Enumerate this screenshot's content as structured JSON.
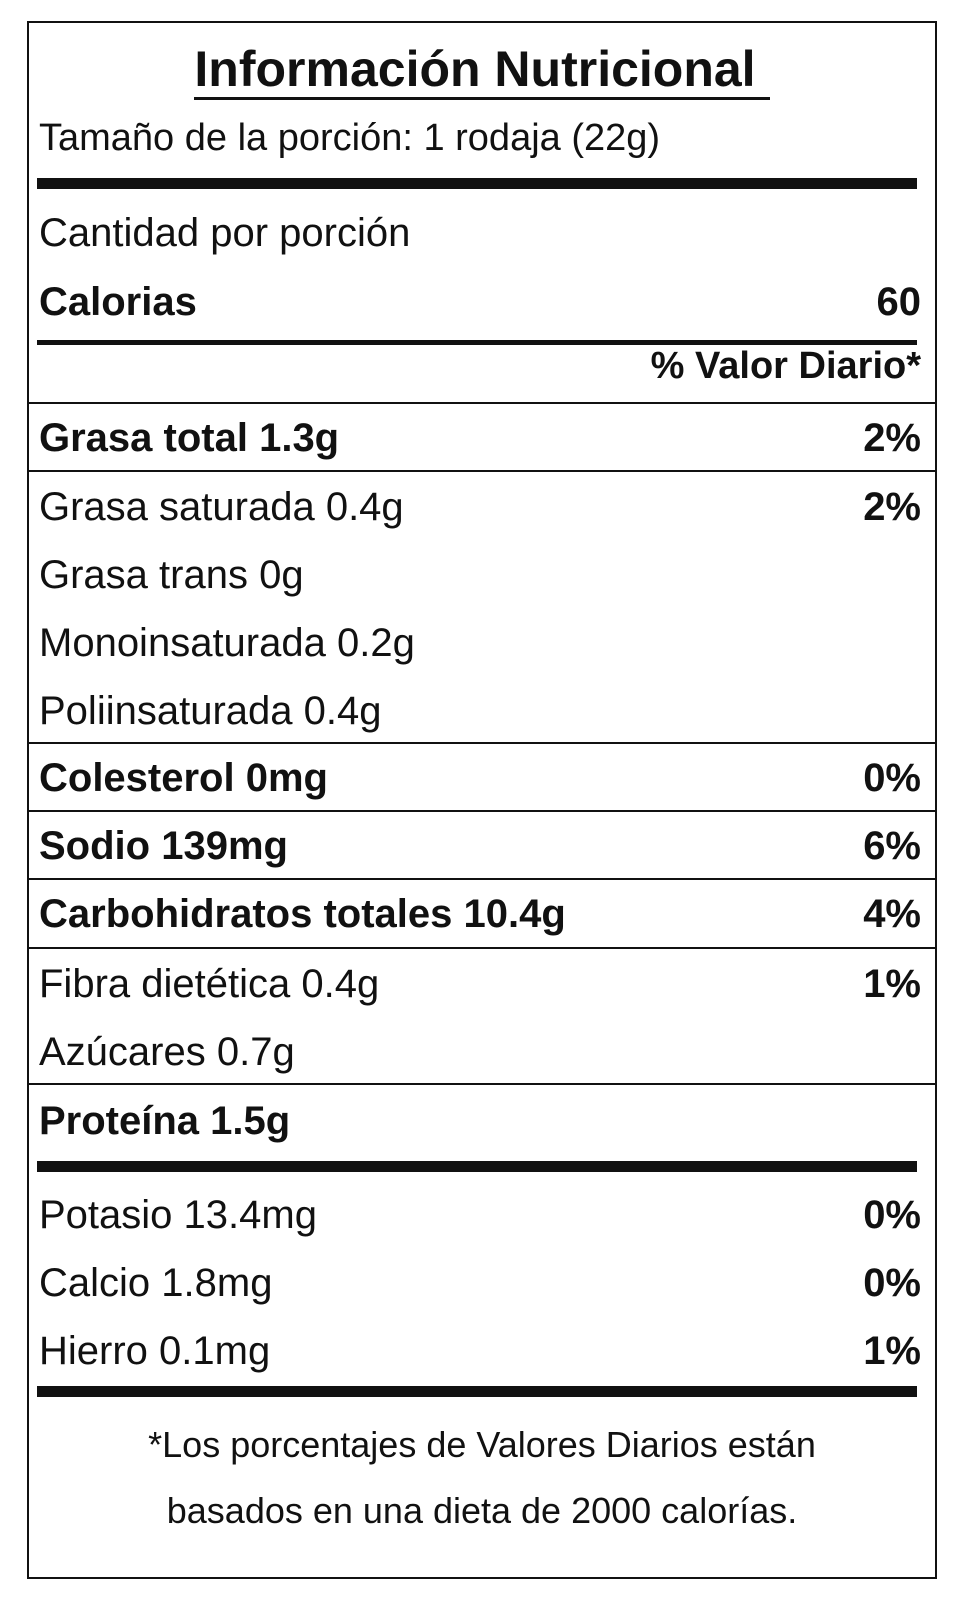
{
  "title": "Información Nutricional",
  "serving_size": "Tamaño de la porción: 1 rodaja (22g)",
  "amount_per_serving": "Cantidad por porción",
  "calories": {
    "label": "Calorias",
    "value": "60"
  },
  "dv_header": "% Valor Diario*",
  "nutrients": {
    "total_fat": {
      "label": "Grasa total 1.3g",
      "dv": "2%"
    },
    "saturated_fat": {
      "label": "Grasa saturada 0.4g",
      "dv": "2%"
    },
    "trans_fat": {
      "label": "Grasa trans 0g"
    },
    "monounsaturated": {
      "label": "Monoinsaturada 0.2g"
    },
    "polyunsaturated": {
      "label": "Poliinsaturada 0.4g"
    },
    "cholesterol": {
      "label": "Colesterol 0mg",
      "dv": "0%"
    },
    "sodium": {
      "label": "Sodio 139mg",
      "dv": "6%"
    },
    "total_carbs": {
      "label": "Carbohidratos totales 10.4g",
      "dv": "4%"
    },
    "fiber": {
      "label": "Fibra dietética 0.4g",
      "dv": "1%"
    },
    "sugars": {
      "label": "Azúcares 0.7g"
    },
    "protein": {
      "label": "Proteína 1.5g"
    }
  },
  "minerals": {
    "potassium": {
      "label": "Potasio 13.4mg",
      "dv": "0%"
    },
    "calcium": {
      "label": "Calcio 1.8mg",
      "dv": "0%"
    },
    "iron": {
      "label": "Hierro 0.1mg",
      "dv": "1%"
    }
  },
  "footnote": {
    "line1": "*Los porcentajes de Valores Diarios están",
    "line2": "basados en una dieta de 2000 calorías."
  }
}
